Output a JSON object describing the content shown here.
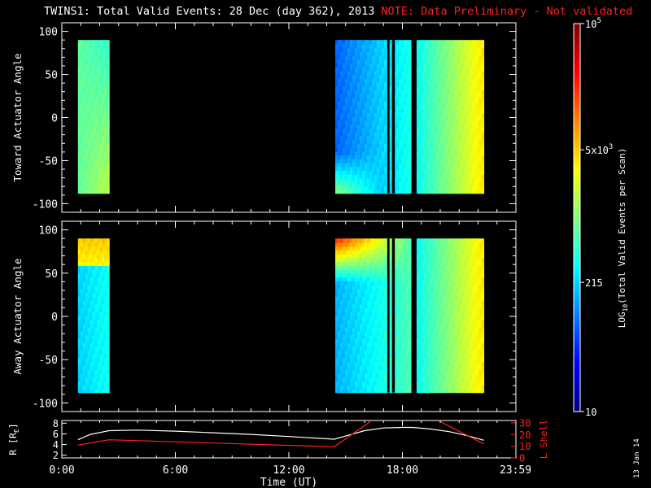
{
  "title": {
    "main": "TWINS1: Total Valid Events: 28 Dec (day 362), 2013",
    "note": "NOTE: Data Preliminary - Not validated",
    "note_color": "#ff2020"
  },
  "date_stamp": "13 Jan 14",
  "chart_data": [
    {
      "type": "heatmap",
      "name": "toward",
      "ylabel": "Toward Actuator Angle",
      "ylim": [
        -110,
        110
      ],
      "yticks": [
        "100",
        "50",
        "0",
        "-50",
        "-100"
      ],
      "ytick_values": [
        100,
        50,
        0,
        -50,
        -100
      ],
      "xlim_hours": [
        0,
        24
      ],
      "angle_range": [
        -88,
        90
      ],
      "blocks": [
        {
          "start_h": 0.85,
          "end_h": 2.5,
          "profile": "toward_early"
        },
        {
          "start_h": 14.45,
          "end_h": 18.45,
          "profile": "toward_main"
        },
        {
          "start_h": 18.75,
          "end_h": 22.3,
          "profile": "ramp"
        }
      ],
      "gaps": [
        {
          "at_h": 17.2,
          "width_h": 0.12
        },
        {
          "at_h": 17.45,
          "width_h": 0.15
        }
      ]
    },
    {
      "type": "heatmap",
      "name": "away",
      "ylabel": "Away Actuator Angle",
      "ylim": [
        -110,
        110
      ],
      "yticks": [
        "100",
        "50",
        "0",
        "-50",
        "-100"
      ],
      "ytick_values": [
        100,
        50,
        0,
        -50,
        -100
      ],
      "xlim_hours": [
        0,
        24
      ],
      "angle_range": [
        -88,
        90
      ],
      "blocks": [
        {
          "start_h": 0.85,
          "end_h": 2.5,
          "profile": "away_early"
        },
        {
          "start_h": 14.45,
          "end_h": 18.45,
          "profile": "away_main"
        },
        {
          "start_h": 18.75,
          "end_h": 22.3,
          "profile": "ramp"
        }
      ],
      "gaps": [
        {
          "at_h": 17.2,
          "width_h": 0.12
        },
        {
          "at_h": 17.45,
          "width_h": 0.15
        }
      ]
    },
    {
      "type": "line",
      "name": "orbit",
      "ylabel_left": "R [R",
      "ylabel_left_sub": "E",
      "ylabel_left_end": "]",
      "ylim_left": [
        1.5,
        8.5
      ],
      "yticks_left": [
        "2",
        "4",
        "6",
        "8"
      ],
      "yticks_left_values": [
        2,
        4,
        6,
        8
      ],
      "ylabel_right": "L Shell",
      "ylim_right": [
        0,
        32
      ],
      "yticks_right": [
        "0",
        "10",
        "20",
        "30"
      ],
      "yticks_right_values": [
        0,
        10,
        20,
        30
      ],
      "right_color": "#ff2020",
      "xlabel": "Time (UT)",
      "xticks": [
        "0:00",
        "6:00",
        "12:00",
        "18:00",
        "23:59"
      ],
      "xtick_hours": [
        0,
        6,
        12,
        18,
        23.98
      ],
      "series": [
        {
          "color": "#ffffff",
          "axis": "left",
          "x": [
            0.85,
            1.5,
            2.5,
            4,
            6,
            8,
            10,
            12,
            14.4,
            15,
            16,
            17,
            18,
            18.5,
            19.5,
            20.5,
            21.5,
            22.3
          ],
          "y": [
            4.9,
            5.9,
            6.6,
            6.7,
            6.5,
            6.2,
            5.9,
            5.5,
            5.0,
            5.6,
            6.6,
            7.1,
            7.2,
            7.2,
            6.9,
            6.4,
            5.6,
            4.8
          ]
        },
        {
          "color": "#ff2020",
          "axis": "right",
          "x": [
            0.85,
            2.5,
            14.4,
            16.3
          ],
          "y": [
            11,
            15.5,
            9.5,
            31
          ]
        },
        {
          "color": "#ff2020",
          "axis": "right",
          "x": [
            20.0,
            22.3
          ],
          "y": [
            31,
            12
          ]
        }
      ]
    }
  ],
  "colorbar": {
    "label": "LOG10(Total Valid Events per Scan)",
    "label_pre": "LOG",
    "label_sub": "10",
    "label_post": "(Total Valid Events per Scan)",
    "range": [
      10,
      100000
    ],
    "ticks": [
      {
        "value": 100000,
        "base": "10",
        "exp": "5"
      },
      {
        "value": 5000,
        "base": "5x10",
        "exp": "3"
      },
      {
        "value": 215,
        "base": "215",
        "exp": ""
      },
      {
        "value": 10,
        "base": "10",
        "exp": ""
      }
    ]
  }
}
